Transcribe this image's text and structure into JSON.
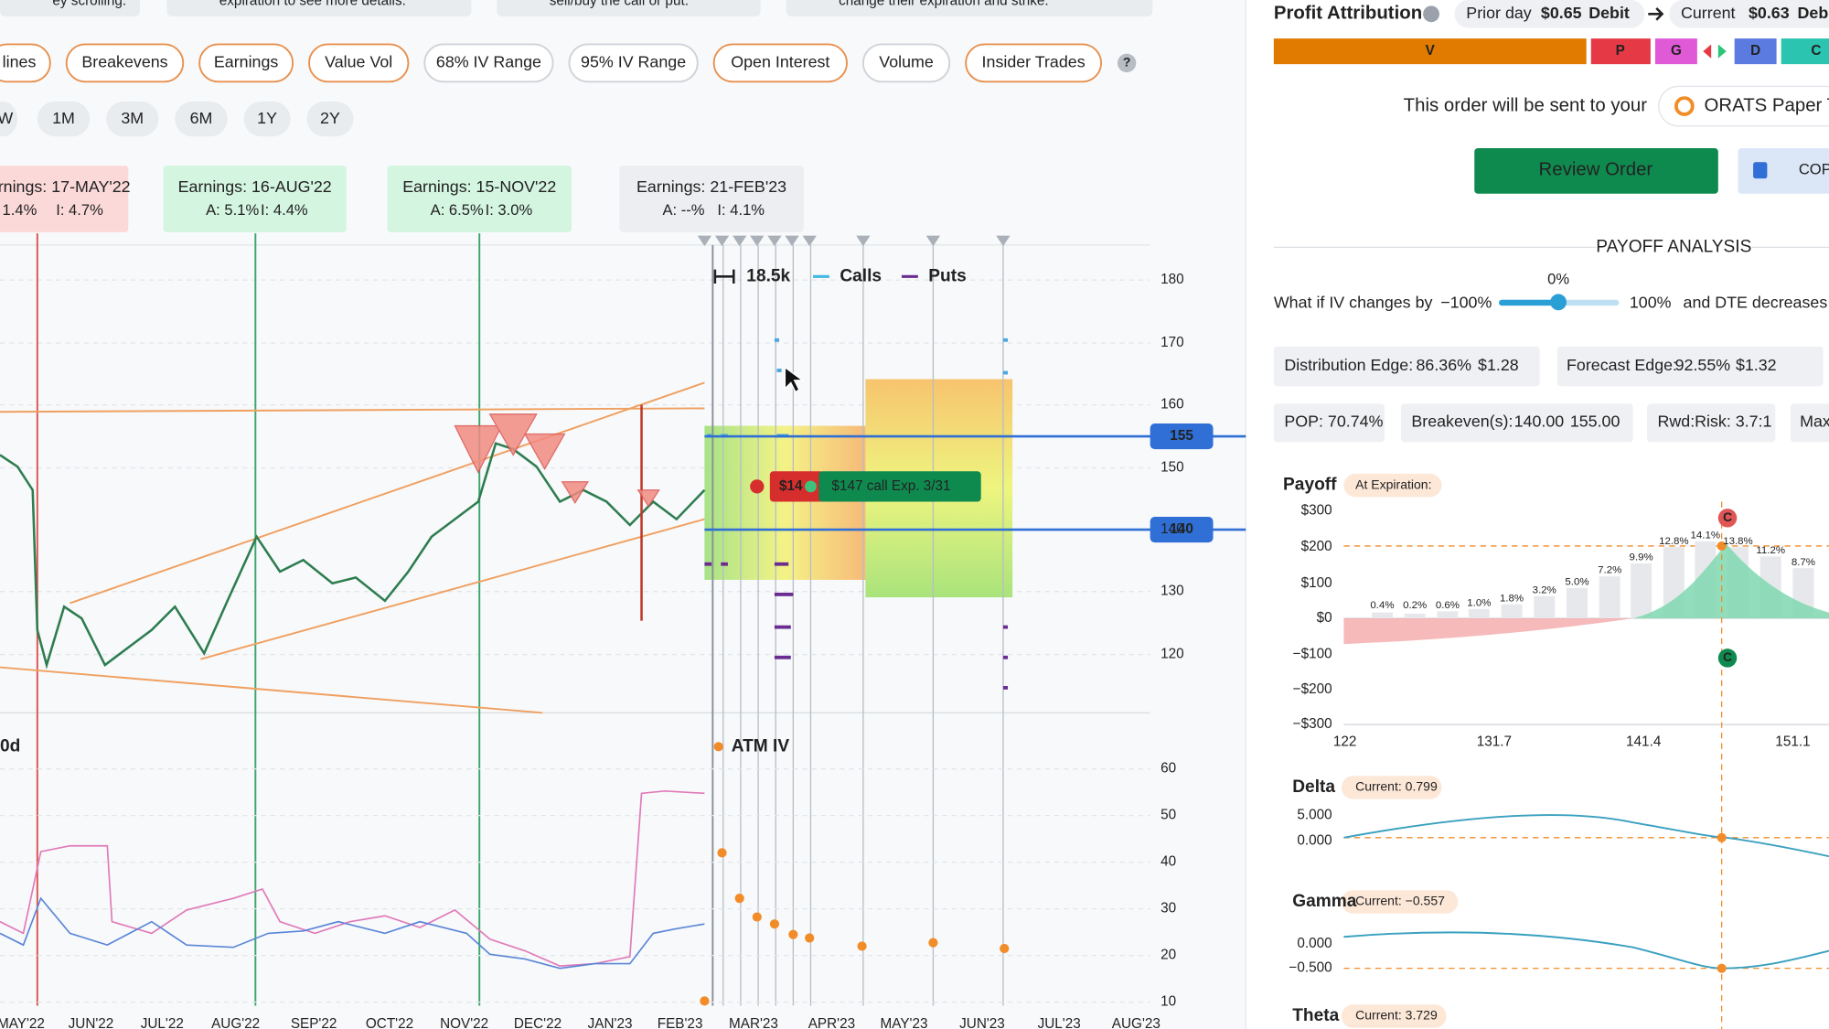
{
  "hints": [
    "ey scrolling.",
    "expiration to see more details.",
    "sell/buy the call or put.",
    "change their expiration and strike."
  ],
  "toolbar": [
    "lines",
    "Breakevens",
    "Earnings",
    "Value Vol",
    "68% IV Range",
    "95% IV Range",
    "Open Interest",
    "Volume",
    "Insider Trades"
  ],
  "help": "?",
  "ranges": [
    "W",
    "1M",
    "3M",
    "6M",
    "1Y",
    "2Y"
  ],
  "earnings": [
    {
      "title": "rnings: 17-MAY'22",
      "actual": "1.4%",
      "implied": "I: 4.7%"
    },
    {
      "title": "Earnings: 16-AUG'22",
      "actual": "A: 5.1%",
      "implied": "I: 4.4%"
    },
    {
      "title": "Earnings: 15-NOV'22",
      "actual": "A: 6.5%",
      "implied": "I: 3.0%"
    },
    {
      "title": "Earnings: 21-FEB'23",
      "actual": "A: --%",
      "implied": "I: 4.1%"
    }
  ],
  "price_chart": {
    "legend": {
      "size": "18.5k",
      "calls": "Calls",
      "puts": "Puts"
    },
    "yticks": [
      180,
      170,
      160,
      150,
      140,
      130,
      120
    ],
    "levels": [
      155,
      140
    ],
    "tooltip": {
      "short": "$14",
      "label": "$147 call Exp. 3/31"
    }
  },
  "iv_chart": {
    "window": "0d",
    "legend": "ATM IV",
    "yticks": [
      60,
      50,
      40,
      30,
      20,
      10
    ]
  },
  "xticks": [
    "MAY'22",
    "JUN'22",
    "JUL'22",
    "AUG'22",
    "SEP'22",
    "OCT'22",
    "NOV'22",
    "DEC'22",
    "JAN'23",
    "FEB'23",
    "MAR'23",
    "APR'23",
    "MAY'23",
    "JUN'23",
    "JUL'23",
    "AUG'23"
  ],
  "panel": {
    "attribution": {
      "title": "Profit Attribution",
      "prior_label": "Prior day",
      "prior_value": "$0.65",
      "prior_side": "Debit",
      "current_label": "Current",
      "current_value": "$0.63",
      "current_side": "Debi",
      "segments": [
        "V",
        "P",
        "G",
        "D",
        "C"
      ]
    },
    "order": {
      "notice": "This order will be sent to your",
      "broker": "ORATS Paper T",
      "review": "Review Order",
      "copy": "COP"
    },
    "payoff": {
      "heading": "PAYOFF ANALYSIS",
      "iv_value": "0%",
      "iv_prompt": "What if IV changes by",
      "iv_min": "−100%",
      "iv_max": "100%",
      "dte_prompt": "and DTE decreases b"
    },
    "stats": {
      "dist_label": "Distribution Edge:",
      "dist_pct": "86.36%",
      "dist_value": "$1.28",
      "fc_label": "Forecast Edge:",
      "fc_pct": "92.55%",
      "fc_value": "$1.32",
      "pop": "POP: 70.74%",
      "be_label": "Breakeven(s):",
      "be_values": [
        "140.00",
        "155.00"
      ],
      "rwd": "Rwd:Risk: 3.7:1",
      "max": "Max"
    },
    "payoff_chart": {
      "title": "Payoff",
      "mode": "At Expiration:",
      "yticks": [
        "$300",
        "$200",
        "$100",
        "$0",
        "−$100",
        "−$200",
        "−$300"
      ],
      "xticks": [
        "122",
        "131.7",
        "141.4",
        "151.1"
      ],
      "bar_labels": [
        "0.4%",
        "0.2%",
        "0.6%",
        "1.0%",
        "1.8%",
        "3.2%",
        "5.0%",
        "7.2%",
        "9.9%",
        "12.8%",
        "14.1%",
        "13.8%",
        "11.2%",
        "8.7%"
      ],
      "markers": [
        "C",
        "C"
      ]
    },
    "greeks": [
      {
        "name": "Delta",
        "current": "Current: 0.799",
        "ticks": [
          "5.000",
          "0.000"
        ]
      },
      {
        "name": "Gamma",
        "current": "Current: −0.557",
        "ticks": [
          "0.000",
          "−0.500"
        ]
      },
      {
        "name": "Theta",
        "current": "Current: 3.729"
      }
    ]
  }
}
